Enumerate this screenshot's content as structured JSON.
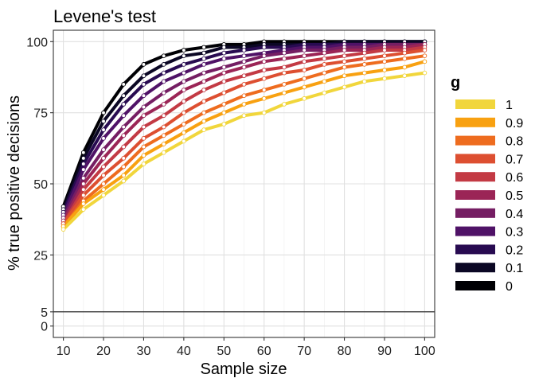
{
  "chart_data": {
    "type": "line",
    "title": "Levene's test",
    "xlabel": "Sample size",
    "ylabel": "% true positive decisions",
    "xlim": [
      7.5,
      102.5
    ],
    "ylim": [
      -4,
      104
    ],
    "x_ticks": [
      10,
      20,
      30,
      40,
      50,
      60,
      70,
      80,
      90,
      100
    ],
    "x_minor_ticks": [
      15,
      25,
      35,
      45,
      55,
      65,
      75,
      85,
      95
    ],
    "y_ticks": [
      0,
      5,
      25,
      50,
      75,
      100
    ],
    "y_tick_labels": [
      "0",
      "5",
      "25",
      "50",
      "75",
      "100"
    ],
    "reference_line_y": 5,
    "grid": true,
    "legend_position": "right",
    "legend_title": "g",
    "x": [
      10,
      15,
      20,
      25,
      30,
      35,
      40,
      45,
      50,
      55,
      60,
      65,
      70,
      75,
      80,
      85,
      90,
      95,
      100
    ],
    "series": [
      {
        "name": "1",
        "color": "#F1D63C",
        "values": [
          34,
          41,
          46,
          51,
          57,
          61,
          65,
          69,
          71,
          74,
          75,
          78,
          80,
          82,
          84,
          86,
          87,
          88,
          89
        ]
      },
      {
        "name": "0.9",
        "color": "#F8A111",
        "values": [
          35,
          43,
          48,
          53,
          60,
          64,
          68,
          72,
          75,
          78,
          80,
          82,
          84,
          86,
          88,
          89,
          90,
          91,
          93
        ]
      },
      {
        "name": "0.8",
        "color": "#EE6C1F",
        "values": [
          35,
          44,
          50,
          56,
          63,
          67,
          71,
          75,
          78,
          81,
          83,
          85,
          87,
          89,
          91,
          92,
          93,
          94,
          95
        ]
      },
      {
        "name": "0.7",
        "color": "#DD4F31",
        "values": [
          36,
          46,
          53,
          59,
          66,
          70,
          75,
          79,
          82,
          85,
          87,
          89,
          90,
          92,
          93,
          94,
          95,
          96,
          97
        ]
      },
      {
        "name": "0.6",
        "color": "#C33A44",
        "values": [
          36,
          48,
          56,
          63,
          70,
          74,
          79,
          83,
          86,
          88,
          90,
          91,
          93,
          94,
          95,
          96,
          97,
          97,
          98
        ]
      },
      {
        "name": "0.5",
        "color": "#9B2556",
        "values": [
          37,
          50,
          59,
          67,
          74,
          78,
          83,
          86,
          89,
          91,
          93,
          94,
          95,
          96,
          97,
          97,
          98,
          98,
          99
        ]
      },
      {
        "name": "0.4",
        "color": "#751E63",
        "values": [
          38,
          52,
          62,
          70,
          77,
          82,
          86,
          89,
          91,
          93,
          95,
          96,
          97,
          97,
          98,
          98,
          99,
          99,
          99
        ]
      },
      {
        "name": "0.3",
        "color": "#4F1267",
        "values": [
          39,
          55,
          66,
          74,
          81,
          86,
          89,
          92,
          94,
          95,
          96,
          97,
          98,
          98,
          99,
          99,
          99,
          99,
          99
        ]
      },
      {
        "name": "0.2",
        "color": "#280B51",
        "values": [
          40,
          57,
          69,
          78,
          85,
          89,
          92,
          94,
          96,
          97,
          98,
          98,
          99,
          99,
          99,
          99,
          99,
          99,
          99
        ]
      },
      {
        "name": "0.1",
        "color": "#0B0724",
        "values": [
          41,
          59,
          72,
          81,
          88,
          92,
          95,
          96,
          98,
          98,
          99,
          99,
          99,
          99,
          100,
          100,
          100,
          100,
          100
        ]
      },
      {
        "name": "0",
        "color": "#000004",
        "values": [
          42,
          61,
          75,
          85,
          92,
          95,
          97,
          98,
          99,
          99,
          100,
          100,
          100,
          100,
          100,
          100,
          100,
          100,
          100
        ]
      }
    ]
  }
}
